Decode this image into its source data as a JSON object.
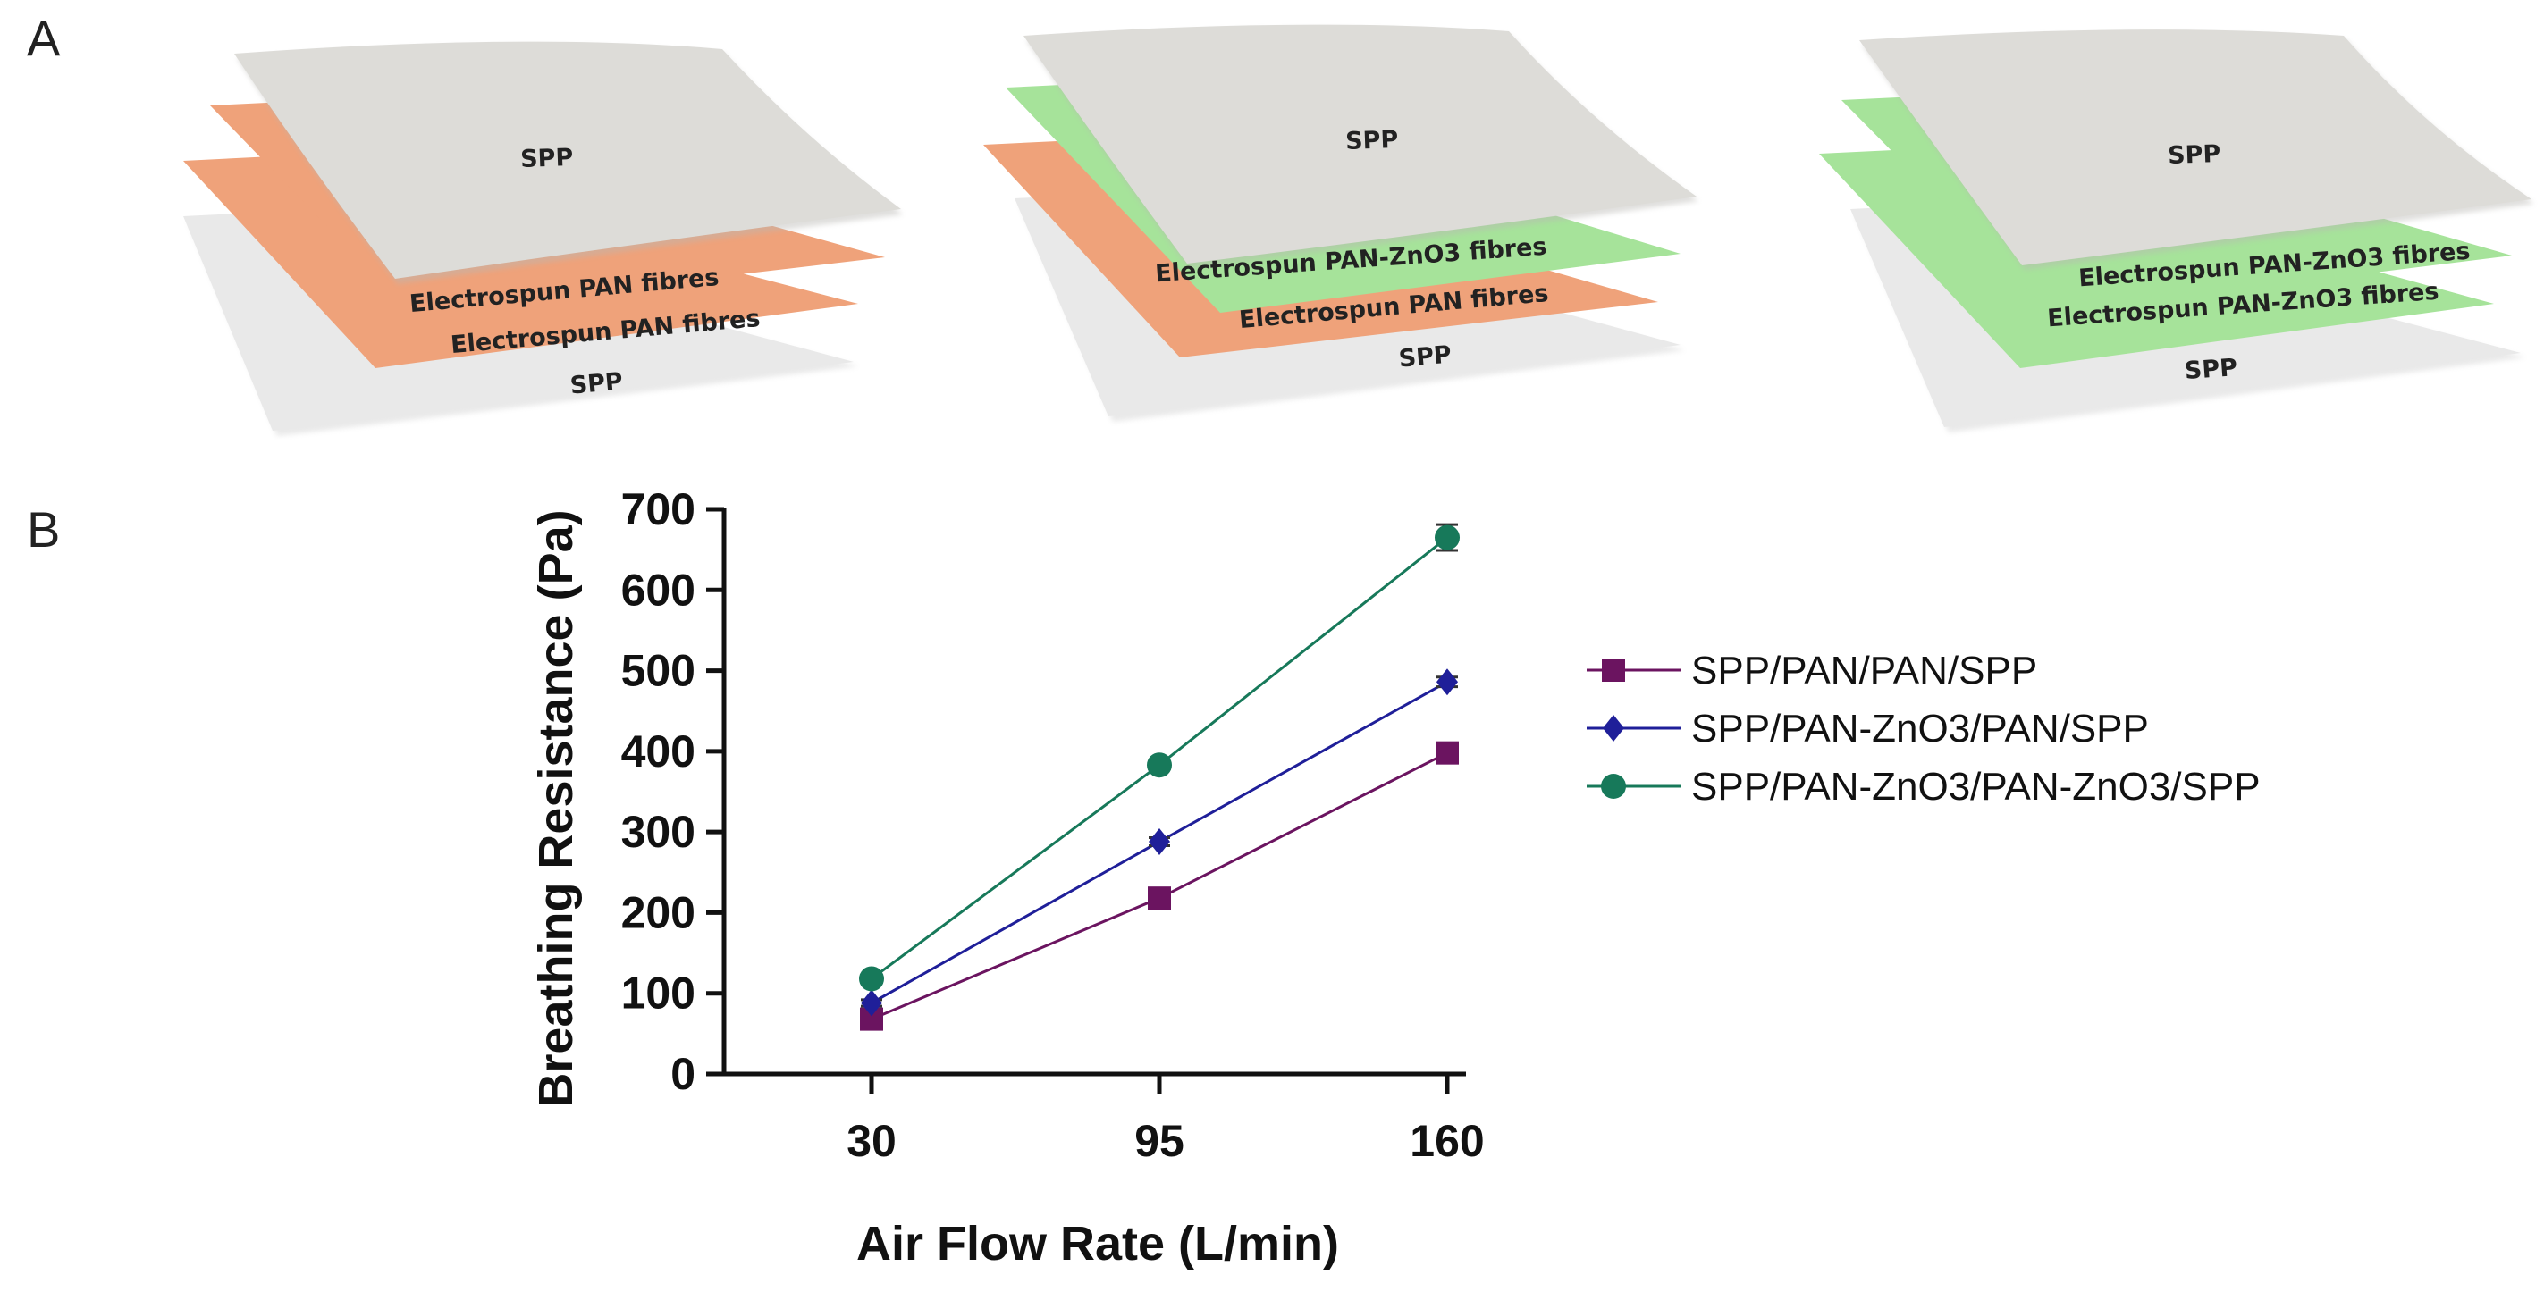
{
  "panels": {
    "a_letter": "A",
    "b_letter": "B"
  },
  "diagram": {
    "stacks": [
      {
        "top_label": "SPP",
        "middle_upper_label": "Electrospun PAN fibres",
        "middle_lower_label": "Electrospun PAN fibres",
        "bottom_label": "SPP",
        "middle_upper_color": "#EFA27A",
        "middle_lower_color": "#EFA27A"
      },
      {
        "top_label": "SPP",
        "middle_upper_label": "Electrospun PAN-ZnO3 fibres",
        "middle_lower_label": "Electrospun PAN fibres",
        "bottom_label": "SPP",
        "middle_upper_color": "#A6E39A",
        "middle_lower_color": "#EFA27A"
      },
      {
        "top_label": "SPP",
        "middle_upper_label": "Electrospun PAN-ZnO3 fibres",
        "middle_lower_label": "Electrospun PAN-ZnO3 fibres",
        "bottom_label": "SPP",
        "middle_upper_color": "#A6E39A",
        "middle_lower_color": "#A6E39A"
      }
    ],
    "colors": {
      "spp_top": "#DDDCD8",
      "spp_bottom": "#E9E9E9"
    }
  },
  "chart_data": {
    "type": "line",
    "title": "",
    "xlabel": "Air Flow Rate (L/min)",
    "ylabel": "Breathing Resistance (Pa)",
    "categories": [
      "30",
      "95",
      "160"
    ],
    "x": [
      30,
      95,
      160
    ],
    "ylim": [
      0,
      700
    ],
    "yticks": [
      0,
      100,
      200,
      300,
      400,
      500,
      600,
      700
    ],
    "grid": false,
    "legend_position": "right",
    "series": [
      {
        "name": "SPP/PAN/PAN/SPP",
        "values": [
          68,
          218,
          398
        ],
        "errors": [
          5,
          6,
          7
        ],
        "color": "#6B1460",
        "marker": "square"
      },
      {
        "name": "SPP/PAN-ZnO3/PAN/SPP",
        "values": [
          88,
          288,
          486
        ],
        "errors": [
          4,
          5,
          6
        ],
        "color": "#1F1F99",
        "marker": "diamond"
      },
      {
        "name": "SPP/PAN-ZnO3/PAN-ZnO3/SPP",
        "values": [
          118,
          383,
          665
        ],
        "errors": [
          5,
          6,
          16
        ],
        "color": "#17795A",
        "marker": "circle"
      }
    ]
  }
}
